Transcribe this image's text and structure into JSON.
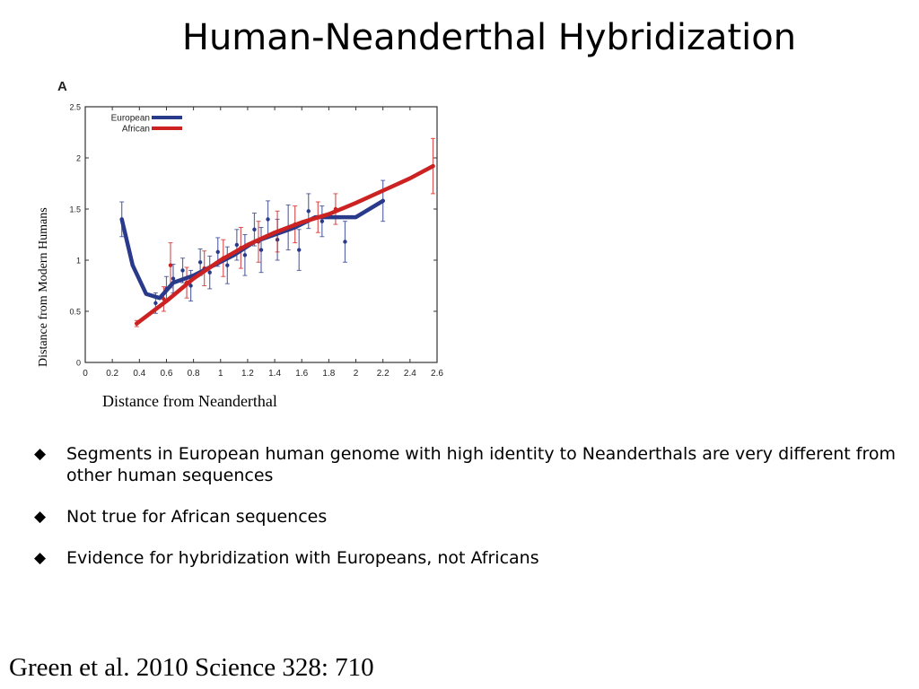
{
  "slide": {
    "title": "Human-Neanderthal Hybridization",
    "citation": "Green et al. 2010 Science 328: 710",
    "bullet_marker": "◆",
    "bullets": [
      "Segments in European human genome with high identity to Neanderthals are very different from other human sequences",
      "Not true for African sequences",
      "Evidence for hybridization with Europeans, not Africans"
    ]
  },
  "chart_data": {
    "type": "line",
    "panel_label": "A",
    "xlabel": "Distance from Neanderthal",
    "ylabel": "Distance from Modern Humans",
    "xlim": [
      0,
      2.6
    ],
    "ylim": [
      0,
      2.5
    ],
    "xticks": [
      "0",
      "0.2",
      "0.4",
      "0.6",
      "0.8",
      "1",
      "1.2",
      "1.4",
      "1.6",
      "1.8",
      "2",
      "2.2",
      "2.4",
      "2.6"
    ],
    "yticks": [
      "0",
      "0.5",
      "1",
      "1.5",
      "2",
      "2.5"
    ],
    "legend_position": "top-left",
    "series": [
      {
        "name": "European",
        "color": "#2a3a8a",
        "x": [
          0.27,
          0.35,
          0.45,
          0.55,
          0.65,
          0.8,
          0.95,
          1.1,
          1.25,
          1.4,
          1.55,
          1.7,
          1.85,
          2.0,
          2.2
        ],
        "y": [
          1.4,
          0.95,
          0.67,
          0.63,
          0.78,
          0.85,
          0.95,
          1.05,
          1.18,
          1.25,
          1.32,
          1.42,
          1.42,
          1.42,
          1.58
        ],
        "points": [
          {
            "x": 0.27,
            "y": 1.4,
            "err": 0.17
          },
          {
            "x": 0.52,
            "y": 0.58,
            "err": 0.1
          },
          {
            "x": 0.6,
            "y": 0.72,
            "err": 0.12
          },
          {
            "x": 0.65,
            "y": 0.82,
            "err": 0.14
          },
          {
            "x": 0.72,
            "y": 0.9,
            "err": 0.12
          },
          {
            "x": 0.78,
            "y": 0.75,
            "err": 0.15
          },
          {
            "x": 0.85,
            "y": 0.98,
            "err": 0.13
          },
          {
            "x": 0.92,
            "y": 0.88,
            "err": 0.16
          },
          {
            "x": 0.98,
            "y": 1.08,
            "err": 0.14
          },
          {
            "x": 1.05,
            "y": 0.95,
            "err": 0.18
          },
          {
            "x": 1.12,
            "y": 1.15,
            "err": 0.15
          },
          {
            "x": 1.18,
            "y": 1.05,
            "err": 0.2
          },
          {
            "x": 1.25,
            "y": 1.3,
            "err": 0.16
          },
          {
            "x": 1.3,
            "y": 1.1,
            "err": 0.22
          },
          {
            "x": 1.35,
            "y": 1.4,
            "err": 0.18
          },
          {
            "x": 1.42,
            "y": 1.2,
            "err": 0.2
          },
          {
            "x": 1.5,
            "y": 1.32,
            "err": 0.22
          },
          {
            "x": 1.58,
            "y": 1.1,
            "err": 0.2
          },
          {
            "x": 1.65,
            "y": 1.48,
            "err": 0.17
          },
          {
            "x": 1.75,
            "y": 1.38,
            "err": 0.15
          },
          {
            "x": 1.92,
            "y": 1.18,
            "err": 0.2
          },
          {
            "x": 2.2,
            "y": 1.58,
            "err": 0.2
          }
        ]
      },
      {
        "name": "African",
        "color": "#cc2222",
        "x": [
          0.38,
          0.6,
          0.8,
          1.0,
          1.2,
          1.4,
          1.6,
          1.8,
          2.0,
          2.2,
          2.4,
          2.57
        ],
        "y": [
          0.38,
          0.6,
          0.82,
          1.0,
          1.15,
          1.27,
          1.37,
          1.45,
          1.56,
          1.68,
          1.8,
          1.92
        ],
        "points": [
          {
            "x": 0.38,
            "y": 0.38,
            "err": 0.03
          },
          {
            "x": 0.58,
            "y": 0.62,
            "err": 0.12
          },
          {
            "x": 0.63,
            "y": 0.95,
            "err": 0.22
          },
          {
            "x": 0.75,
            "y": 0.78,
            "err": 0.15
          },
          {
            "x": 0.88,
            "y": 0.92,
            "err": 0.17
          },
          {
            "x": 1.02,
            "y": 1.02,
            "err": 0.18
          },
          {
            "x": 1.15,
            "y": 1.12,
            "err": 0.2
          },
          {
            "x": 1.28,
            "y": 1.18,
            "err": 0.2
          },
          {
            "x": 1.42,
            "y": 1.28,
            "err": 0.2
          },
          {
            "x": 1.55,
            "y": 1.35,
            "err": 0.18
          },
          {
            "x": 1.72,
            "y": 1.42,
            "err": 0.15
          },
          {
            "x": 1.85,
            "y": 1.5,
            "err": 0.15
          },
          {
            "x": 2.57,
            "y": 1.92,
            "err": 0.27
          }
        ]
      }
    ]
  }
}
